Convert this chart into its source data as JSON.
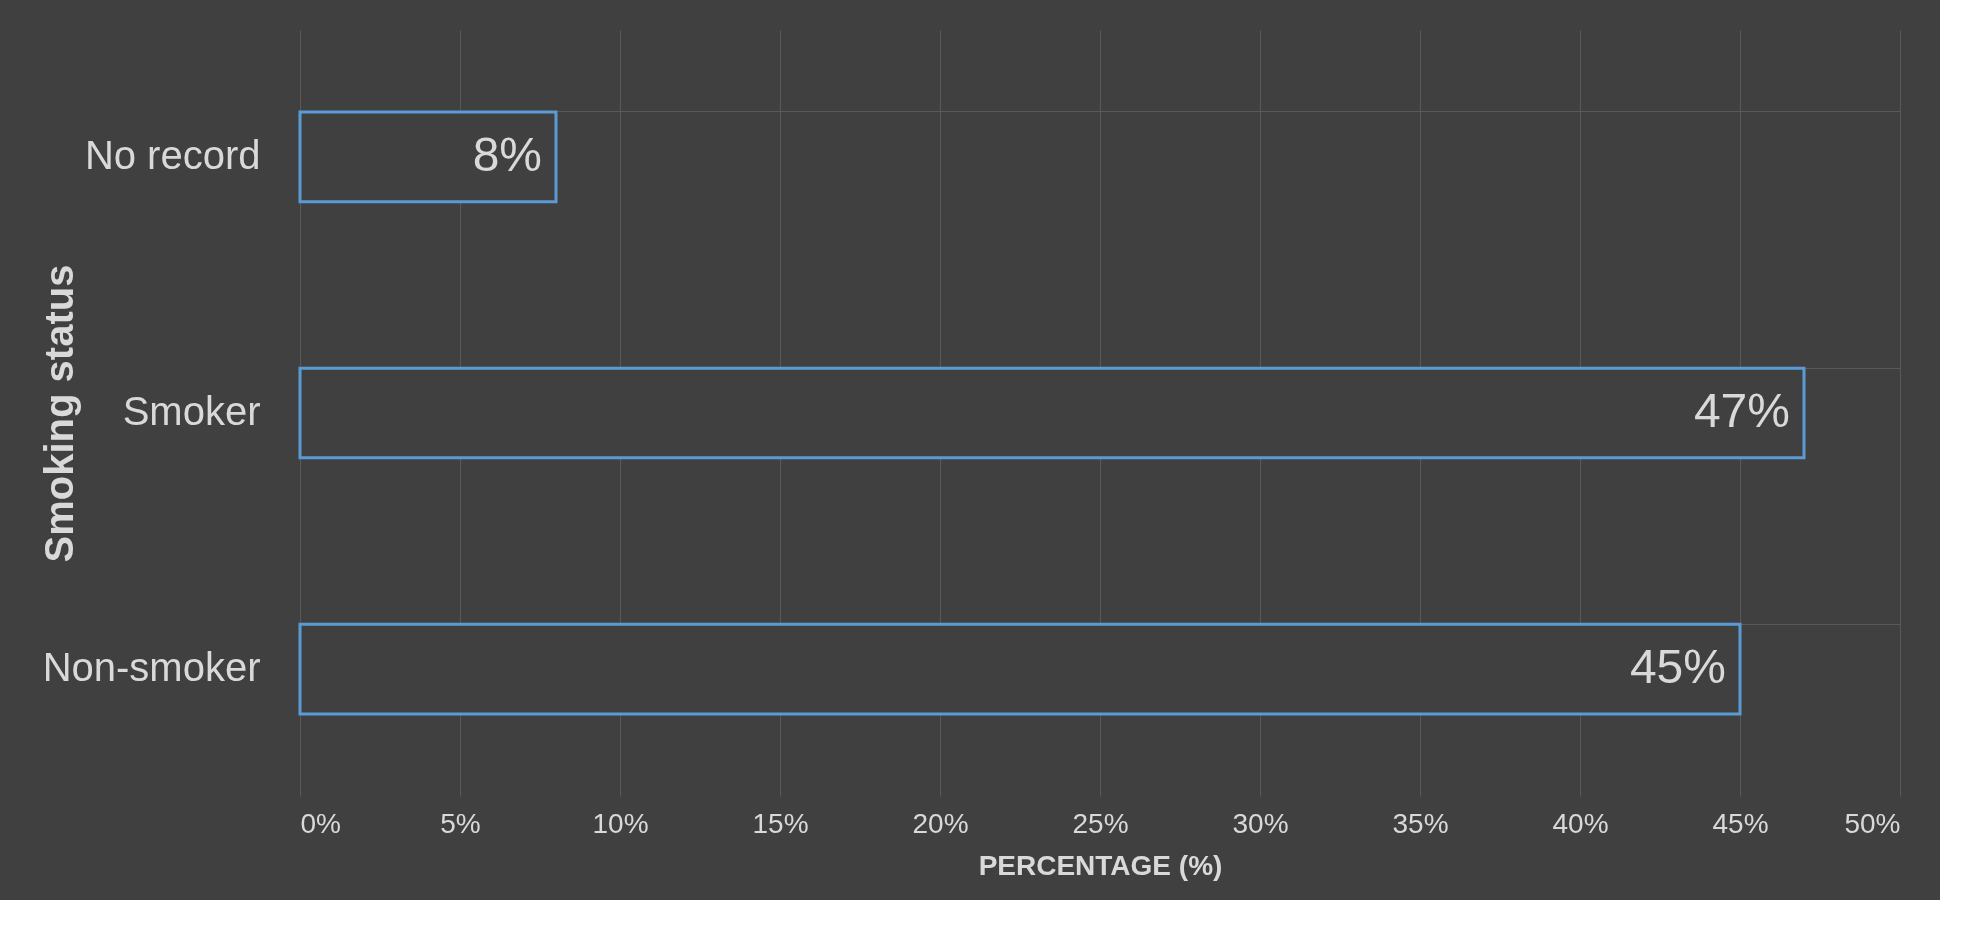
{
  "chart_data": {
    "type": "bar",
    "orientation": "horizontal",
    "categories": [
      "No record",
      "Smoker",
      "Non-smoker"
    ],
    "values": [
      8,
      47,
      45
    ],
    "value_labels": [
      "8%",
      "47%",
      "45%"
    ],
    "color": "#5b9bd5",
    "xlabel": "PERCENTAGE (%)",
    "ylabel": "Smoking status",
    "xlim": [
      0,
      50
    ],
    "xticks": [
      {
        "value": 0,
        "label": "0%"
      },
      {
        "value": 5,
        "label": "5%"
      },
      {
        "value": 10,
        "label": "10%"
      },
      {
        "value": 15,
        "label": "15%"
      },
      {
        "value": 20,
        "label": "20%"
      },
      {
        "value": 25,
        "label": "25%"
      },
      {
        "value": 30,
        "label": "30%"
      },
      {
        "value": 35,
        "label": "35%"
      },
      {
        "value": 40,
        "label": "40%"
      },
      {
        "value": 45,
        "label": "45%"
      },
      {
        "value": 50,
        "label": "50%"
      }
    ],
    "grid": true
  }
}
